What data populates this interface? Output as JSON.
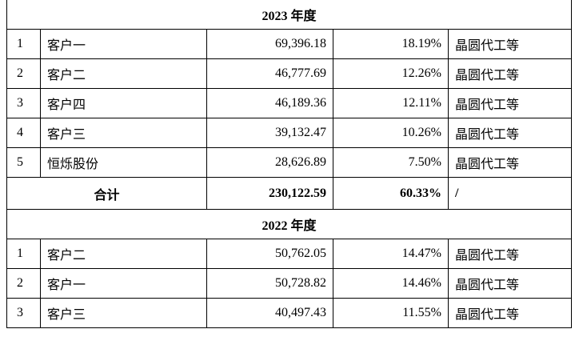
{
  "table": {
    "sections": [
      {
        "title": "2023 年度",
        "rows": [
          [
            "1",
            "客户一",
            "69,396.18",
            "18.19%",
            "晶圆代工等"
          ],
          [
            "2",
            "客户二",
            "46,777.69",
            "12.26%",
            "晶圆代工等"
          ],
          [
            "3",
            "客户四",
            "46,189.36",
            "12.11%",
            "晶圆代工等"
          ],
          [
            "4",
            "客户三",
            "39,132.47",
            "10.26%",
            "晶圆代工等"
          ],
          [
            "5",
            "恒烁股份",
            "28,626.89",
            "7.50%",
            "晶圆代工等"
          ]
        ],
        "total": [
          "合计",
          "230,122.59",
          "60.33%",
          "/"
        ]
      },
      {
        "title": "2022 年度",
        "rows": [
          [
            "1",
            "客户二",
            "50,762.05",
            "14.47%",
            "晶圆代工等"
          ],
          [
            "2",
            "客户一",
            "50,728.82",
            "14.46%",
            "晶圆代工等"
          ],
          [
            "3",
            "客户三",
            "40,497.43",
            "11.55%",
            "晶圆代工等"
          ]
        ]
      }
    ]
  }
}
